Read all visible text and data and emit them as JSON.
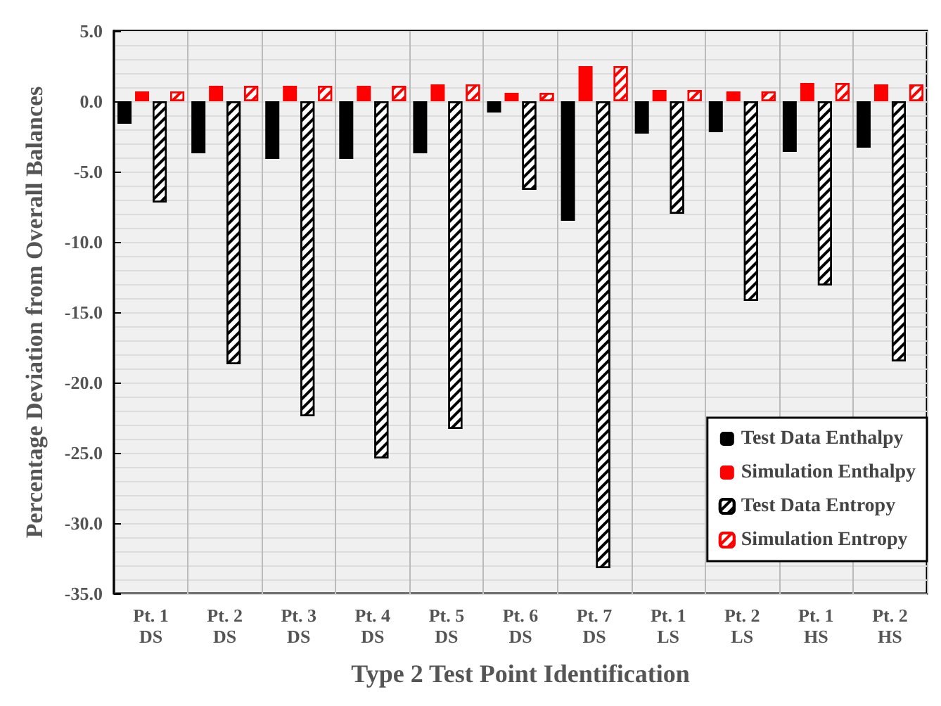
{
  "chart_data": {
    "type": "bar",
    "xlabel": "Type 2 Test Point Identification",
    "ylabel": "Percentage Deviation from Overall Balances",
    "categories": [
      "Pt. 1\nDS",
      "Pt. 2\nDS",
      "Pt. 3\nDS",
      "Pt. 4\nDS",
      "Pt. 5\nDS",
      "Pt. 6\nDS",
      "Pt. 7\nDS",
      "Pt. 1\nLS",
      "Pt. 2\nLS",
      "Pt. 1\nHS",
      "Pt. 2\nHS"
    ],
    "series": [
      {
        "name": "Test Data Enthalpy",
        "color": "#000000",
        "values": [
          -1.6,
          -3.7,
          -4.1,
          -4.1,
          -3.7,
          -0.8,
          -8.5,
          -2.3,
          -2.2,
          -3.6,
          -3.3
        ]
      },
      {
        "name": "Simulation Enthalpy",
        "color": "#ff0000",
        "values": [
          0.7,
          1.1,
          1.1,
          1.1,
          1.2,
          0.6,
          2.5,
          0.8,
          0.7,
          1.3,
          1.2
        ]
      },
      {
        "name": "Test Data Entropy",
        "color": "#000000",
        "values": [
          -7.2,
          -18.7,
          -22.4,
          -25.4,
          -23.3,
          -6.3,
          -33.2,
          -8.0,
          -14.2,
          -13.1,
          -18.5
        ]
      },
      {
        "name": "Simulation Entropy",
        "color": "#ff0000",
        "values": [
          0.7,
          1.1,
          1.1,
          1.1,
          1.2,
          0.6,
          2.5,
          0.8,
          0.7,
          1.3,
          1.2
        ]
      }
    ],
    "ylim": [
      -35,
      5
    ],
    "yticks": [
      {
        "value": -35,
        "label": "-35.0"
      },
      {
        "value": -30,
        "label": "-30.0"
      },
      {
        "value": -25,
        "label": "-25.0"
      },
      {
        "value": -20,
        "label": "-20.0"
      },
      {
        "value": -15,
        "label": "-15.0"
      },
      {
        "value": -10,
        "label": "-10.0"
      },
      {
        "value": -5,
        "label": "-5.0"
      },
      {
        "value": 0,
        "label": "0.0"
      },
      {
        "value": 5,
        "label": "5.0"
      }
    ],
    "grid": true,
    "legend": "bottom right"
  }
}
